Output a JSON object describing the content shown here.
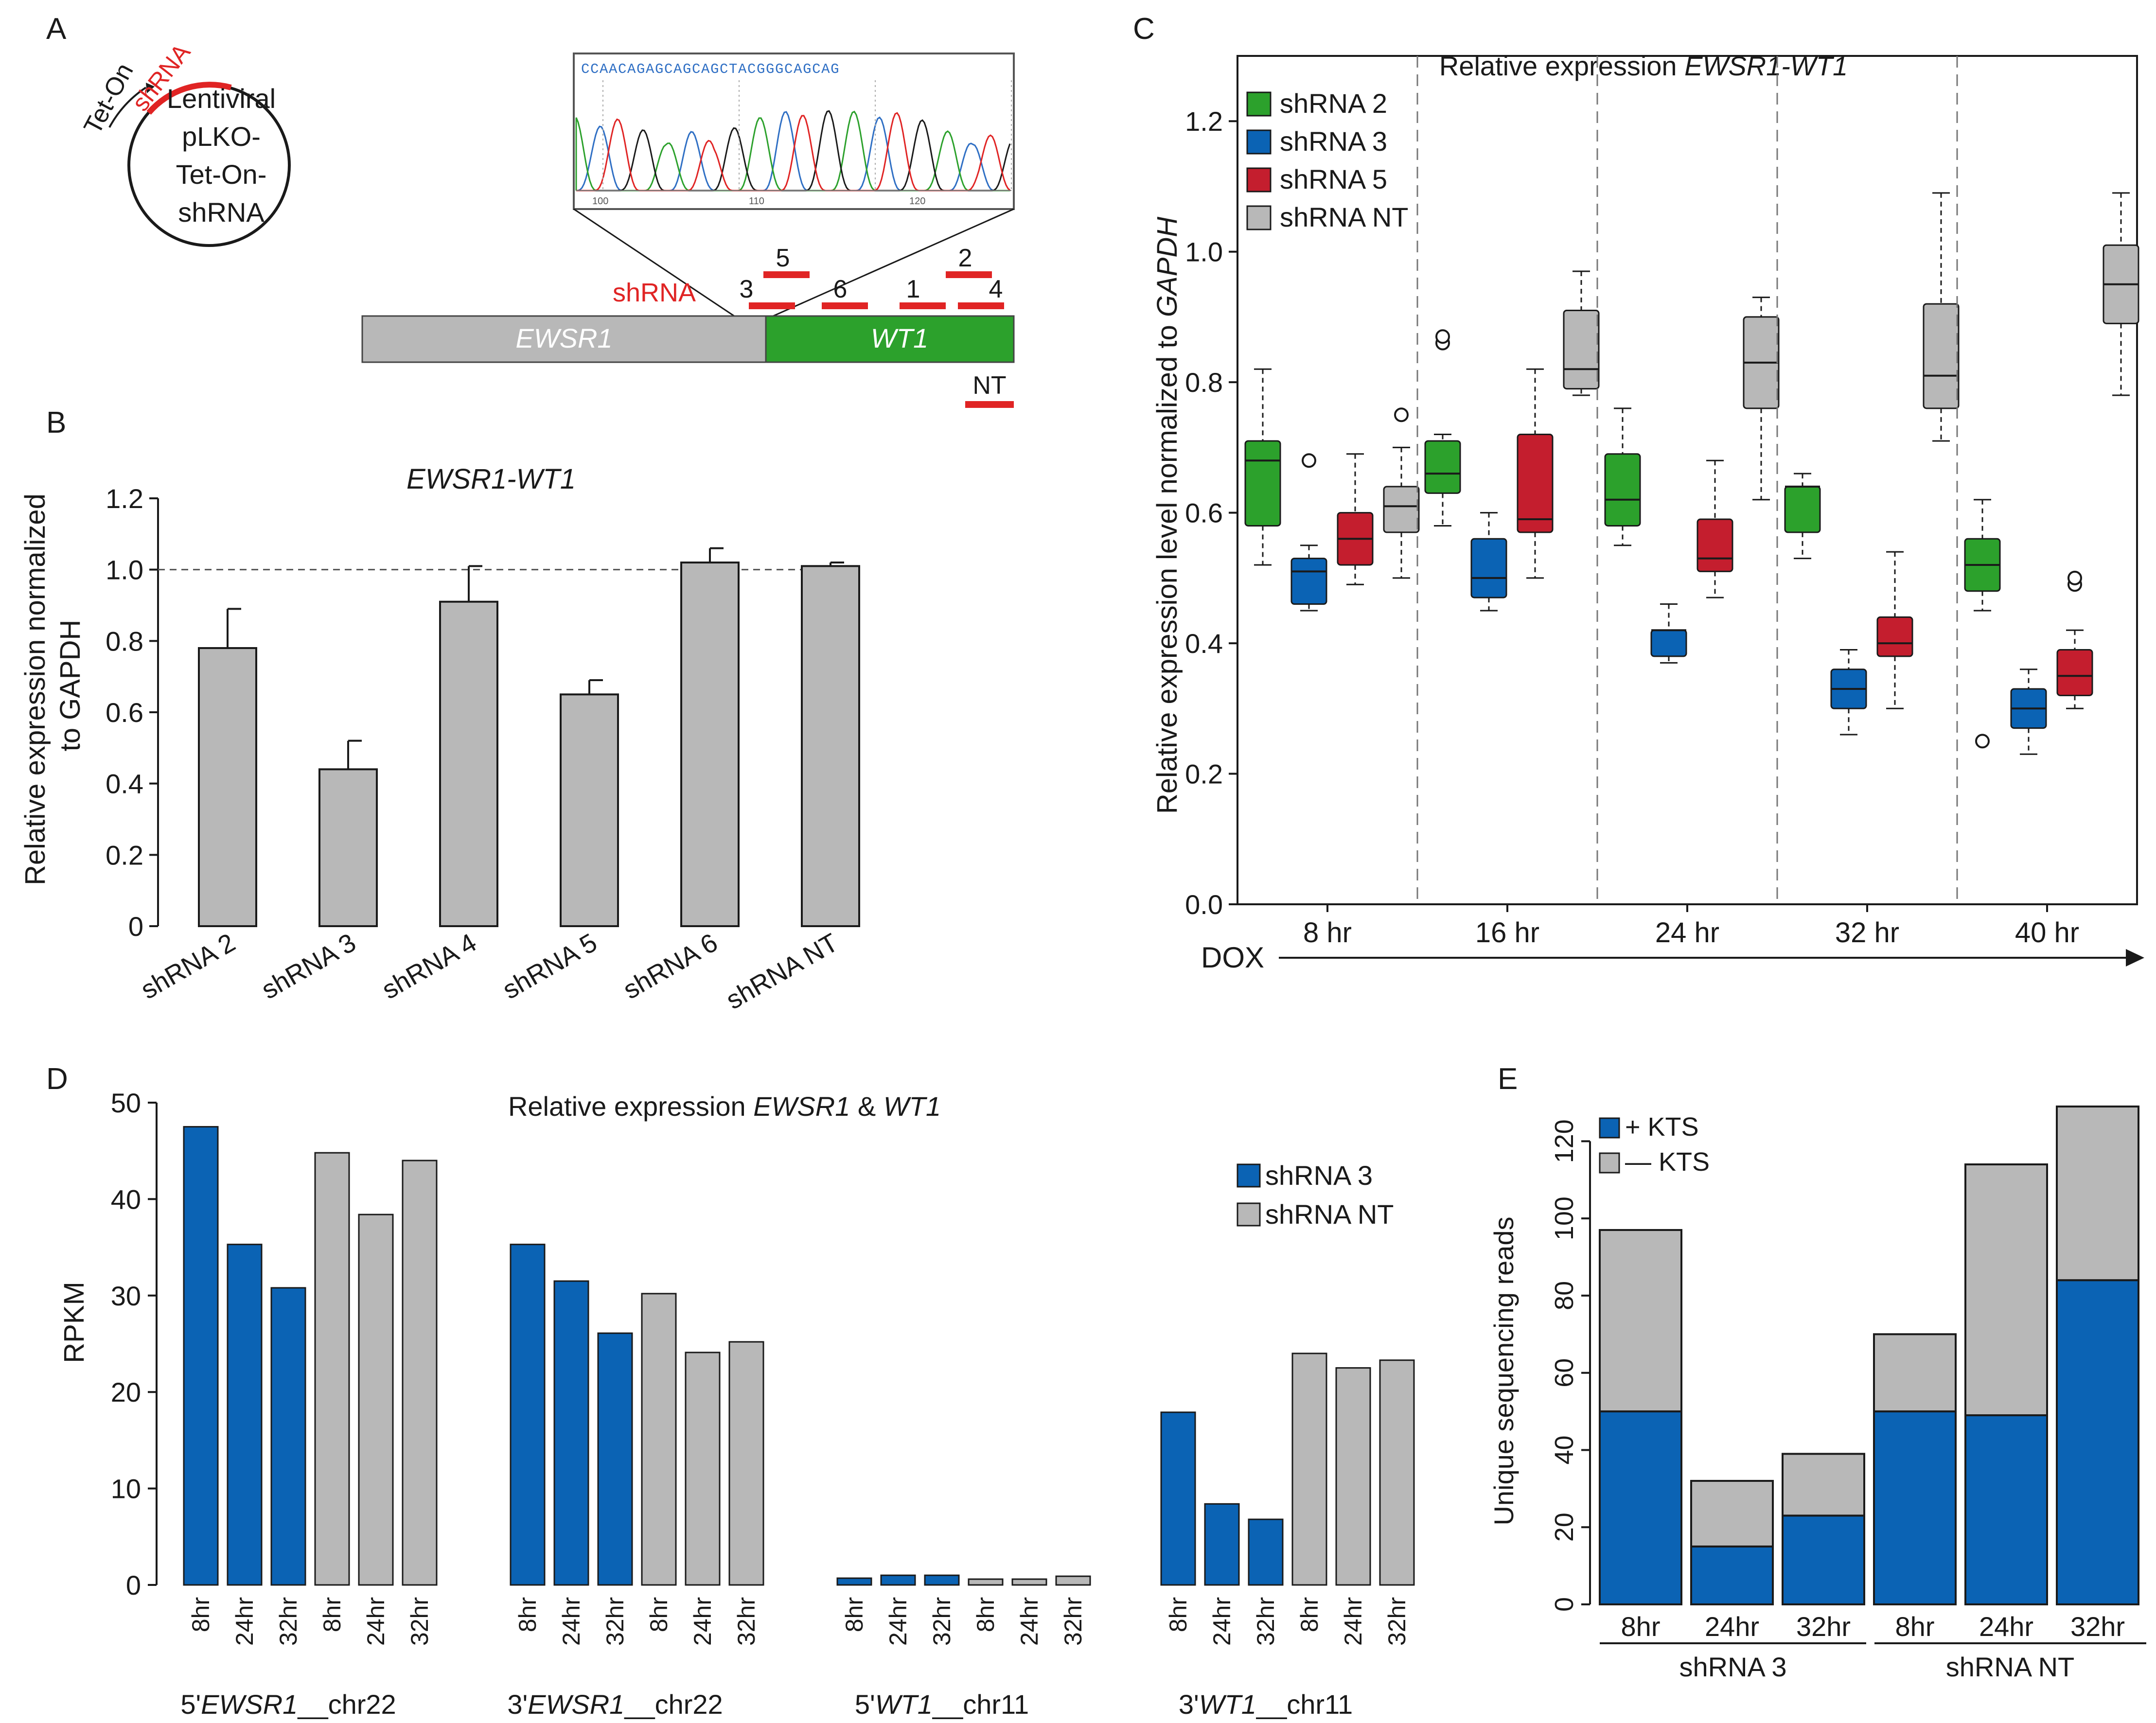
{
  "colors": {
    "green": "#2ca12c",
    "blue": "#0b63b4",
    "red": "#c41e2e",
    "gray": "#b8b8b8",
    "dark": "#1a1a1a",
    "shrna_red": "#e02424"
  },
  "panel_letters": {
    "a": "A",
    "b": "B",
    "c": "C",
    "d": "D",
    "e": "E"
  },
  "panel_a": {
    "plasmid_lines": [
      "Lentiviral",
      "pLKO-",
      "Tet-On-",
      "shRNA"
    ],
    "tet_on": "Tet-On",
    "shrna_arc": "shRNA",
    "ewsr1": "EWSR1",
    "wt1": "WT1",
    "shrna_label": "shRNA",
    "nt_label": "NT",
    "shrna_ids": [
      "3",
      "5",
      "6",
      "1",
      "2",
      "4"
    ],
    "sequence": "CCAACAGAGCAGCAGCTACGGGCAGCAG",
    "trace_ticks": [
      "100",
      "110",
      "120"
    ]
  },
  "chart_data": [
    {
      "id": "B",
      "type": "bar",
      "title": "EWSR1-WT1",
      "ylabel_lines": [
        "Relative expression normalized",
        "to GAPDH"
      ],
      "ylabel_italic_word": "GAPDH",
      "categories": [
        "shRNA 2",
        "shRNA 3",
        "shRNA 4",
        "shRNA 5",
        "shRNA 6",
        "shRNA NT"
      ],
      "values": [
        0.78,
        0.44,
        0.91,
        0.65,
        1.02,
        1.01
      ],
      "errors": [
        0.11,
        0.08,
        0.1,
        0.04,
        0.04,
        0.01
      ],
      "ylim": [
        0,
        1.2
      ],
      "yticks": [
        "0",
        "0.2",
        "0.4",
        "0.6",
        "0.8",
        "1.0",
        "1.2"
      ],
      "reference_line": 1.0
    },
    {
      "id": "C",
      "type": "box",
      "title_prefix": "Relative expression ",
      "title_italic": "EWSR1-WT1",
      "ylabel_prefix": "Relative expression level normalized to ",
      "ylabel_italic": "GAPDH",
      "xlabel": "DOX",
      "groups": [
        "8 hr",
        "16 hr",
        "24 hr",
        "32 hr",
        "40 hr"
      ],
      "legend": [
        "shRNA 2",
        "shRNA 3",
        "shRNA 5",
        "shRNA NT"
      ],
      "ylim": [
        0,
        1.3
      ],
      "yticks": [
        "0.0",
        "0.2",
        "0.4",
        "0.6",
        "0.8",
        "1.0",
        "1.2"
      ],
      "boxes": [
        [
          {
            "min": 0.52,
            "q1": 0.58,
            "med": 0.68,
            "q3": 0.71,
            "max": 0.82,
            "out": []
          },
          {
            "min": 0.45,
            "q1": 0.46,
            "med": 0.51,
            "q3": 0.53,
            "max": 0.55,
            "out": [
              0.68
            ]
          },
          {
            "min": 0.49,
            "q1": 0.52,
            "med": 0.56,
            "q3": 0.6,
            "max": 0.69,
            "out": []
          },
          {
            "min": 0.5,
            "q1": 0.57,
            "med": 0.61,
            "q3": 0.64,
            "max": 0.7,
            "out": [
              0.75
            ]
          }
        ],
        [
          {
            "min": 0.58,
            "q1": 0.63,
            "med": 0.66,
            "q3": 0.71,
            "max": 0.72,
            "out": [
              0.86,
              0.87
            ]
          },
          {
            "min": 0.45,
            "q1": 0.47,
            "med": 0.5,
            "q3": 0.56,
            "max": 0.6,
            "out": []
          },
          {
            "min": 0.5,
            "q1": 0.57,
            "med": 0.59,
            "q3": 0.72,
            "max": 0.82,
            "out": []
          },
          {
            "min": 0.78,
            "q1": 0.79,
            "med": 0.82,
            "q3": 0.91,
            "max": 0.97,
            "out": []
          }
        ],
        [
          {
            "min": 0.55,
            "q1": 0.58,
            "med": 0.62,
            "q3": 0.69,
            "max": 0.76,
            "out": []
          },
          {
            "min": 0.37,
            "q1": 0.38,
            "med": 0.42,
            "q3": 0.42,
            "max": 0.46,
            "out": []
          },
          {
            "min": 0.47,
            "q1": 0.51,
            "med": 0.53,
            "q3": 0.59,
            "max": 0.68,
            "out": []
          },
          {
            "min": 0.62,
            "q1": 0.76,
            "med": 0.83,
            "q3": 0.9,
            "max": 0.93,
            "out": []
          }
        ],
        [
          {
            "min": 0.53,
            "q1": 0.57,
            "med": 0.64,
            "q3": 0.64,
            "max": 0.66,
            "out": []
          },
          {
            "min": 0.26,
            "q1": 0.3,
            "med": 0.33,
            "q3": 0.36,
            "max": 0.39,
            "out": []
          },
          {
            "min": 0.3,
            "q1": 0.38,
            "med": 0.4,
            "q3": 0.44,
            "max": 0.54,
            "out": []
          },
          {
            "min": 0.71,
            "q1": 0.76,
            "med": 0.81,
            "q3": 0.92,
            "max": 1.09,
            "out": []
          }
        ],
        [
          {
            "min": 0.45,
            "q1": 0.48,
            "med": 0.52,
            "q3": 0.56,
            "max": 0.62,
            "out": [
              0.25
            ]
          },
          {
            "min": 0.23,
            "q1": 0.27,
            "med": 0.3,
            "q3": 0.33,
            "max": 0.36,
            "out": []
          },
          {
            "min": 0.3,
            "q1": 0.32,
            "med": 0.35,
            "q3": 0.39,
            "max": 0.42,
            "out": [
              0.49,
              0.5
            ]
          },
          {
            "min": 0.78,
            "q1": 0.89,
            "med": 0.95,
            "q3": 1.01,
            "max": 1.09,
            "out": []
          }
        ]
      ]
    },
    {
      "id": "D",
      "type": "bar",
      "title_prefix": "Relative expression ",
      "title_italic1": "EWSR1",
      "title_mid": " & ",
      "title_italic2": "WT1",
      "ylabel": "RPKM",
      "ylim": [
        0,
        50
      ],
      "yticks": [
        "0",
        "10",
        "20",
        "30",
        "40",
        "50"
      ],
      "legend": [
        "shRNA 3",
        "shRNA NT"
      ],
      "groups": [
        {
          "prefix": "5'",
          "gene": "EWSR1",
          "suffix": "__chr22",
          "labels": [
            "8hr",
            "24hr",
            "32hr",
            "8hr",
            "24hr",
            "32hr"
          ],
          "values": [
            47.5,
            35.3,
            30.8,
            44.8,
            38.4,
            44.0
          ]
        },
        {
          "prefix": "3'",
          "gene": "EWSR1",
          "suffix": "__chr22",
          "labels": [
            "8hr",
            "24hr",
            "32hr",
            "8hr",
            "24hr",
            "32hr"
          ],
          "values": [
            35.3,
            31.5,
            26.1,
            30.2,
            24.1,
            25.2
          ]
        },
        {
          "prefix": "5'",
          "gene": "WT1",
          "suffix": "__chr11",
          "labels": [
            "8hr",
            "24hr",
            "32hr",
            "8hr",
            "24hr",
            "32hr"
          ],
          "values": [
            0.7,
            1.0,
            1.0,
            0.6,
            0.6,
            0.9
          ]
        },
        {
          "prefix": "3'",
          "gene": "WT1",
          "suffix": "__chr11",
          "labels": [
            "8hr",
            "24hr",
            "32hr",
            "8hr",
            "24hr",
            "32hr"
          ],
          "values": [
            17.9,
            8.4,
            6.8,
            24.0,
            22.5,
            23.3
          ]
        }
      ]
    },
    {
      "id": "E",
      "type": "bar",
      "stacked": true,
      "ylabel": "Unique sequencing reads",
      "ylim": [
        0,
        130
      ],
      "yticks": [
        "0",
        "20",
        "40",
        "60",
        "80",
        "100",
        "120"
      ],
      "legend": [
        "+ KTS",
        "— KTS"
      ],
      "categories": [
        "8hr",
        "24hr",
        "32hr",
        "8hr",
        "24hr",
        "32hr"
      ],
      "group_labels": [
        "shRNA 3",
        "shRNA NT"
      ],
      "series": [
        {
          "name": "+ KTS",
          "values": [
            50,
            15,
            23,
            50,
            49,
            84
          ]
        },
        {
          "name": "— KTS",
          "values": [
            47,
            17,
            16,
            20,
            65,
            45
          ]
        }
      ]
    }
  ]
}
